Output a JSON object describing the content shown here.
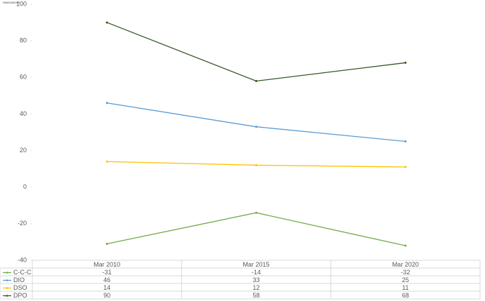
{
  "chart_data": {
    "type": "line",
    "title": "HINDUNILVR",
    "categories": [
      "Mar 2010",
      "Mar 2015",
      "Mar 2020"
    ],
    "series": [
      {
        "name": "C-C-C",
        "color": "#70ad47",
        "values": [
          -31,
          -14,
          -32
        ]
      },
      {
        "name": "DIO",
        "color": "#5b9bd5",
        "values": [
          46,
          33,
          25
        ]
      },
      {
        "name": "DSO",
        "color": "#ffc000",
        "values": [
          14,
          12,
          11
        ]
      },
      {
        "name": "DPO",
        "color": "#375623",
        "values": [
          90,
          58,
          68
        ]
      }
    ],
    "ylim": [
      -40,
      100
    ],
    "yticks": [
      -40,
      -20,
      0,
      20,
      40,
      60,
      80,
      100
    ],
    "grid": false
  }
}
